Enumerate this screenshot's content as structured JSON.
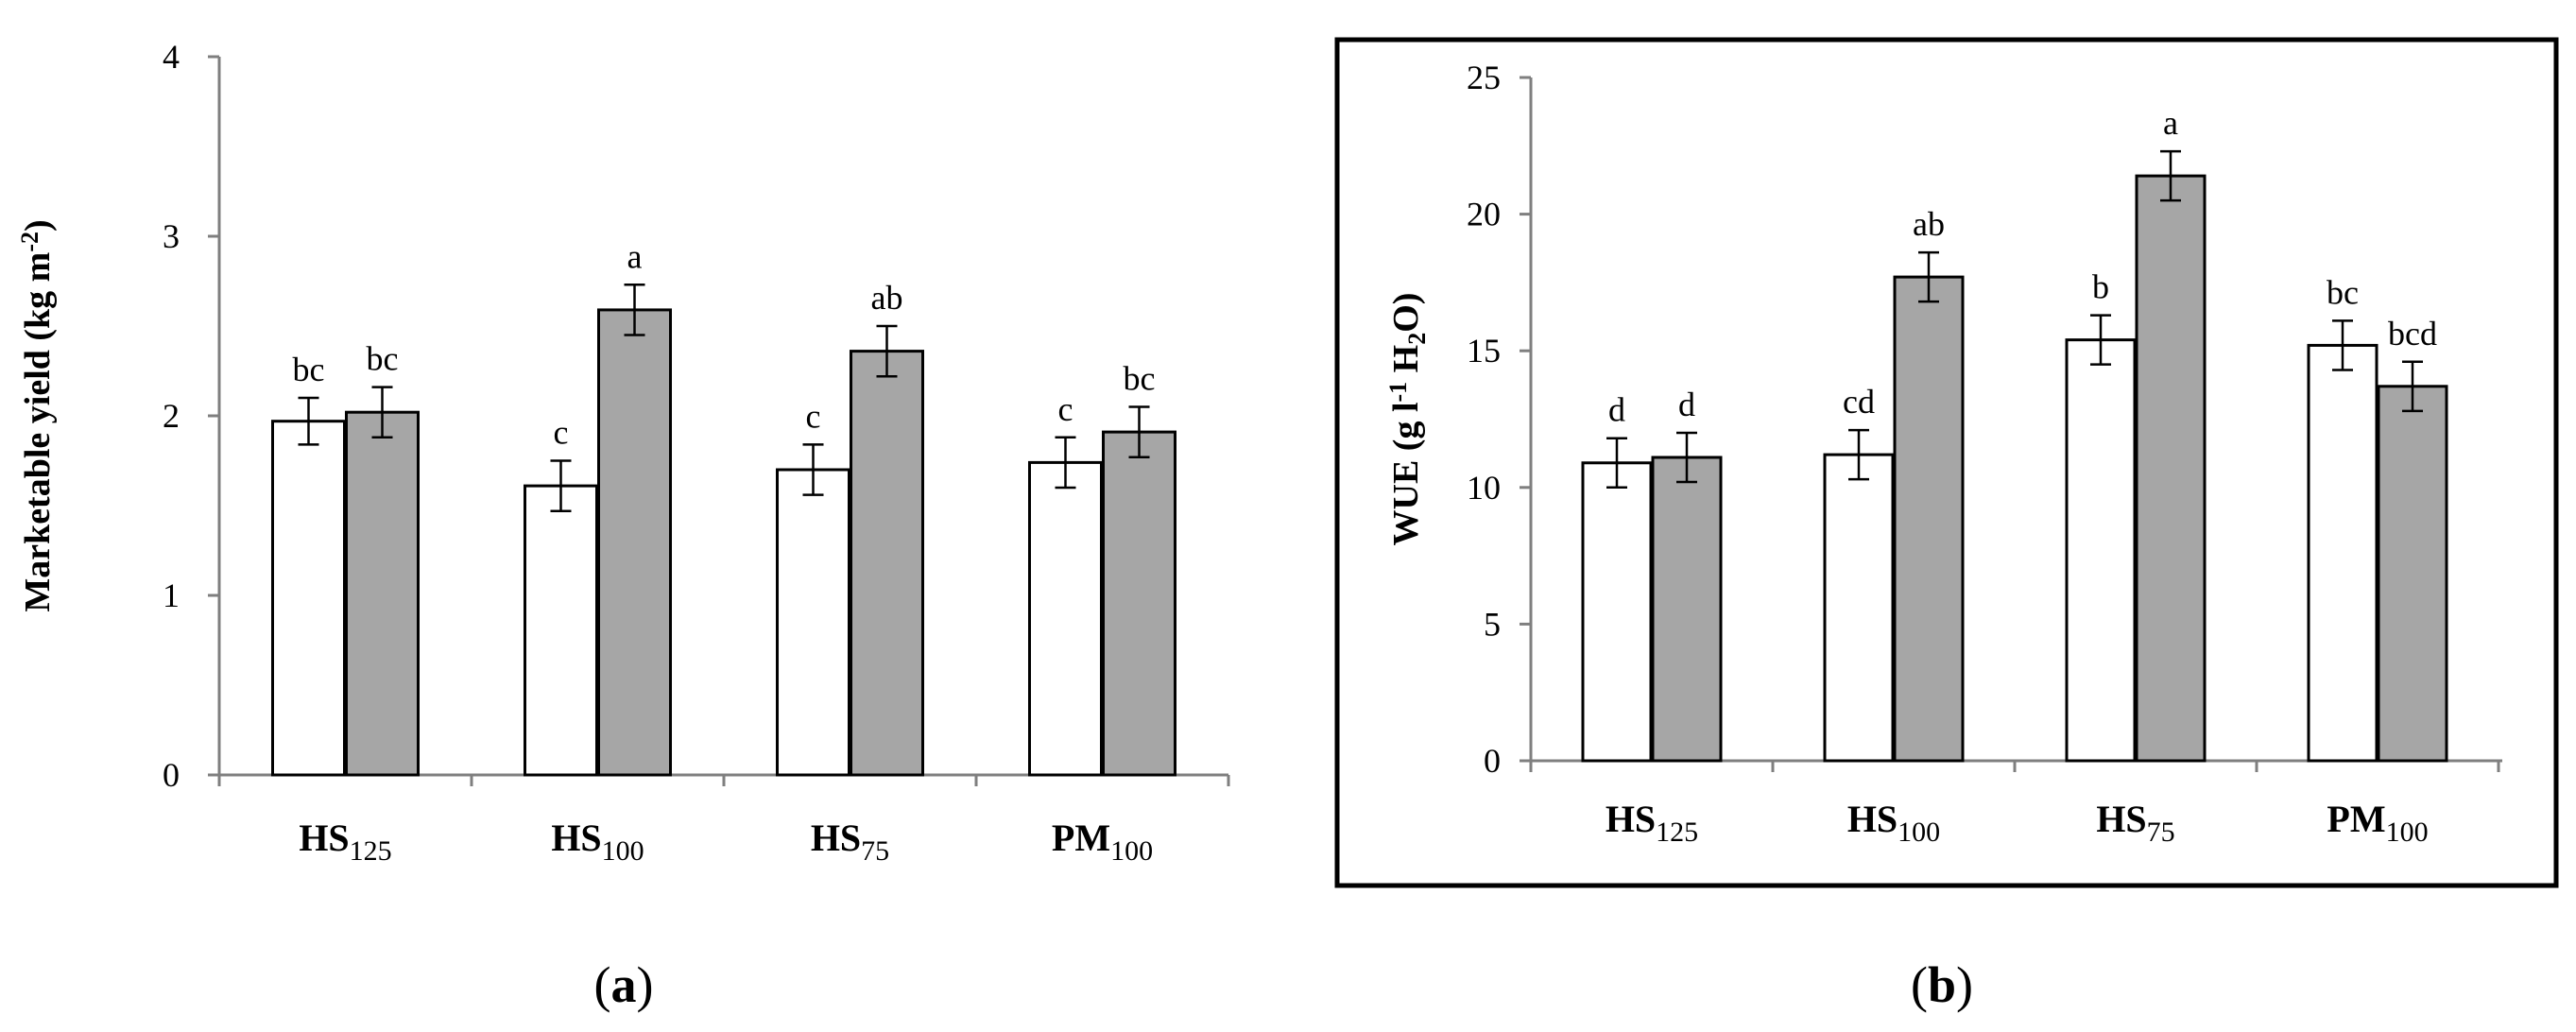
{
  "chart_data": [
    {
      "panel": "a",
      "panel_label_open": "(",
      "panel_label_letter": "a",
      "panel_label_close": ")",
      "type": "bar",
      "ylabel": "Marketable yield (kg m-2)",
      "ylabel_parts": {
        "base": "Marketable yield (kg m",
        "sup": "-2",
        "end": ")"
      },
      "ylim": [
        0,
        4
      ],
      "yticks": [
        0,
        1,
        2,
        3,
        4
      ],
      "ytick_labels": [
        "0",
        "1",
        "2",
        "3",
        "4"
      ],
      "categories": [
        {
          "base": "HS",
          "sub": "125"
        },
        {
          "base": "HS",
          "sub": "100"
        },
        {
          "base": "HS",
          "sub": "75"
        },
        {
          "base": "PM",
          "sub": "100"
        }
      ],
      "series": [
        {
          "name": "white",
          "color": "#ffffff",
          "values": [
            1.97,
            1.61,
            1.7,
            1.74
          ],
          "errors": [
            0.13,
            0.14,
            0.14,
            0.14
          ],
          "letters": [
            "bc",
            "c",
            "c",
            "c"
          ]
        },
        {
          "name": "grey",
          "color": "#a6a6a6",
          "values": [
            2.02,
            2.59,
            2.36,
            1.91
          ],
          "errors": [
            0.14,
            0.14,
            0.14,
            0.14
          ],
          "letters": [
            "bc",
            "a",
            "ab",
            "bc"
          ]
        }
      ],
      "grid": false,
      "framed": false
    },
    {
      "panel": "b",
      "panel_label_open": "(",
      "panel_label_letter": "b",
      "panel_label_close": ")",
      "type": "bar",
      "ylabel": "WUE (g l-1 H2O)",
      "ylabel_parts": {
        "base": "WUE (g l",
        "sup": "-1",
        "mid": " H",
        "sub": "2",
        "end": "O)"
      },
      "ylim": [
        0,
        25
      ],
      "yticks": [
        0,
        5,
        10,
        15,
        20,
        25
      ],
      "ytick_labels": [
        "0",
        "5",
        "10",
        "15",
        "20",
        "25"
      ],
      "categories": [
        {
          "base": "HS",
          "sub": "125"
        },
        {
          "base": "HS",
          "sub": "100"
        },
        {
          "base": "HS",
          "sub": "75"
        },
        {
          "base": "PM",
          "sub": "100"
        }
      ],
      "series": [
        {
          "name": "white",
          "color": "#ffffff",
          "values": [
            10.9,
            11.2,
            15.4,
            15.2
          ],
          "errors": [
            0.9,
            0.9,
            0.9,
            0.9
          ],
          "letters": [
            "d",
            "cd",
            "b",
            "bc"
          ]
        },
        {
          "name": "grey",
          "color": "#a6a6a6",
          "values": [
            11.1,
            17.7,
            21.4,
            13.7
          ],
          "errors": [
            0.9,
            0.9,
            0.9,
            0.9
          ],
          "letters": [
            "d",
            "ab",
            "a",
            "bcd"
          ]
        }
      ],
      "grid": false,
      "framed": true
    }
  ]
}
